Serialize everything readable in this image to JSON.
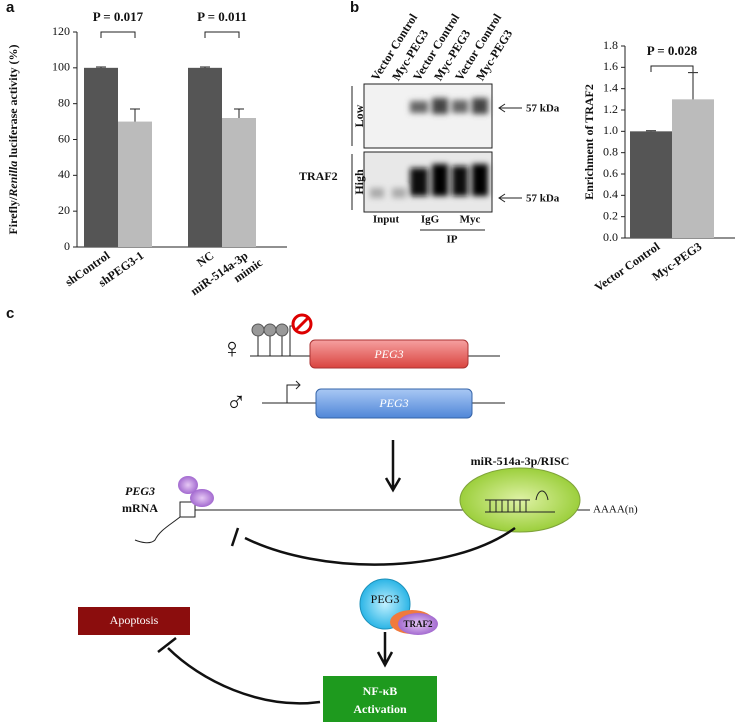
{
  "panel_labels": [
    "a",
    "b",
    "c"
  ],
  "chart_data": [
    {
      "type": "bar",
      "ylabel": [
        "Firefly/",
        "Renilla",
        " luciferase activity (%)"
      ],
      "categories": [
        "shControl",
        "shPEG3-1",
        "NC",
        "miR-514a-3p\nmimic"
      ],
      "values": [
        100,
        70,
        100,
        72
      ],
      "errors": [
        0.5,
        7,
        0.5,
        5
      ],
      "colors": [
        "#555555",
        "#bbbbbb",
        "#555555",
        "#bbbbbb"
      ],
      "ylim": [
        0,
        120
      ],
      "yticks": [
        0,
        20,
        40,
        60,
        80,
        100,
        120
      ],
      "annotations": [
        "P = 0.017",
        "P = 0.011"
      ]
    },
    {
      "type": "bar",
      "ylabel": [
        "Enrichment of TRAF2"
      ],
      "categories": [
        "Vector Control",
        "Myc-PEG3"
      ],
      "values": [
        1.0,
        1.3
      ],
      "errors": [
        0.005,
        0.25
      ],
      "colors": [
        "#555555",
        "#bbbbbb"
      ],
      "ylim": [
        0,
        1.8
      ],
      "yticks": [
        {
          "value": 0,
          "label": "0.0"
        },
        0.2,
        0.4,
        0.6,
        0.8,
        {
          "value": 1,
          "label": "1.0"
        },
        1.2,
        1.4,
        1.6,
        1.8
      ],
      "annotations": [
        "P = 0.028"
      ]
    }
  ],
  "blot": {
    "lanes": [
      "Vector Control",
      "Myc-PEG3",
      "Vector Control",
      "Myc-PEG3",
      "Vector Control",
      "Myc-PEG3"
    ],
    "protein": "TRAF2",
    "exposures": [
      "Low",
      "High"
    ],
    "size": "57 kDa",
    "groups": [
      "Input",
      "IgG",
      "Myc"
    ],
    "ip": "IP"
  },
  "diagram": {
    "female": "♀",
    "male": "♂",
    "gene": "PEG3",
    "mirna": "miR-514a-3p/RISC",
    "mrna": [
      "PEG3",
      "mRNA"
    ],
    "polya": "AAAA(n)",
    "protein": "PEG3",
    "partner": "TRAF2",
    "apoptosis": "Apoptosis",
    "nfkb": [
      "NF-κB",
      "Activation"
    ]
  }
}
